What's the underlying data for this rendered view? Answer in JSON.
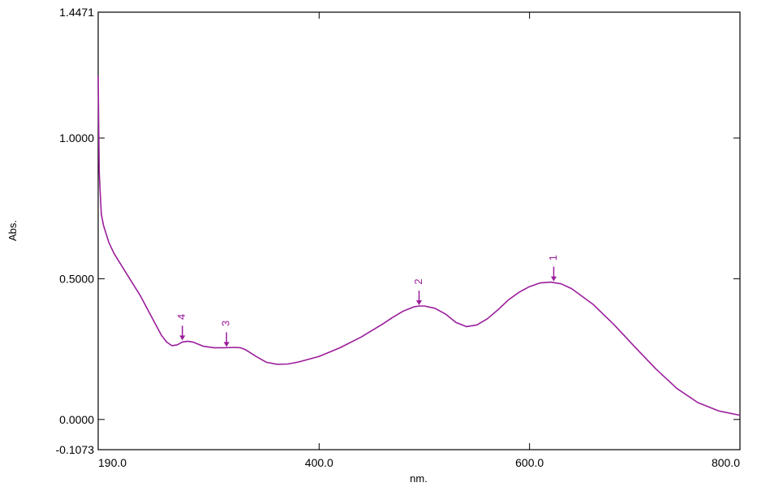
{
  "chart_data": {
    "type": "line",
    "title": "",
    "xlabel": "nm.",
    "ylabel": "Abs.",
    "xlim": [
      190.0,
      800.0
    ],
    "ylim": [
      -0.1073,
      1.4471
    ],
    "x_ticks": [
      190.0,
      400.0,
      600.0,
      800.0
    ],
    "x_tick_labels": [
      "190.0",
      "400.0",
      "600.0",
      "800.0"
    ],
    "y_ticks": [
      1.4471,
      1.0,
      0.5,
      0.0,
      -0.1073
    ],
    "y_tick_labels": [
      "1.4471",
      "1.0000",
      "0.5000",
      "0.0000",
      "-0.1073"
    ],
    "grid": false,
    "line_color": "#9B1D9B",
    "series": [
      {
        "x": [
          190,
          190.5,
          191,
          192,
          193,
          195,
          200,
          205,
          210,
          220,
          230,
          240,
          250,
          255,
          260,
          265,
          270,
          275,
          280,
          290,
          300,
          310,
          320,
          325,
          330,
          340,
          350,
          360,
          370,
          380,
          400,
          420,
          440,
          460,
          470,
          480,
          490,
          495,
          500,
          510,
          520,
          530,
          540,
          550,
          560,
          570,
          580,
          590,
          600,
          610,
          620,
          630,
          640,
          660,
          680,
          700,
          720,
          740,
          760,
          780,
          800
        ],
        "y": [
          1.22,
          1.05,
          0.88,
          0.8,
          0.73,
          0.69,
          0.63,
          0.59,
          0.56,
          0.5,
          0.44,
          0.37,
          0.3,
          0.275,
          0.262,
          0.265,
          0.275,
          0.278,
          0.275,
          0.26,
          0.255,
          0.255,
          0.256,
          0.255,
          0.248,
          0.224,
          0.203,
          0.196,
          0.197,
          0.204,
          0.224,
          0.255,
          0.293,
          0.338,
          0.363,
          0.385,
          0.4,
          0.403,
          0.403,
          0.395,
          0.375,
          0.345,
          0.33,
          0.336,
          0.358,
          0.39,
          0.425,
          0.452,
          0.472,
          0.485,
          0.488,
          0.482,
          0.465,
          0.41,
          0.338,
          0.258,
          0.18,
          0.11,
          0.06,
          0.03,
          0.015
        ]
      }
    ],
    "peaks": [
      {
        "label": "1",
        "x": 623.0,
        "y": 0.488
      },
      {
        "label": "2",
        "x": 495.0,
        "y": 0.403
      },
      {
        "label": "3",
        "x": 312.0,
        "y": 0.255
      },
      {
        "label": "4",
        "x": 270.0,
        "y": 0.278
      }
    ]
  }
}
